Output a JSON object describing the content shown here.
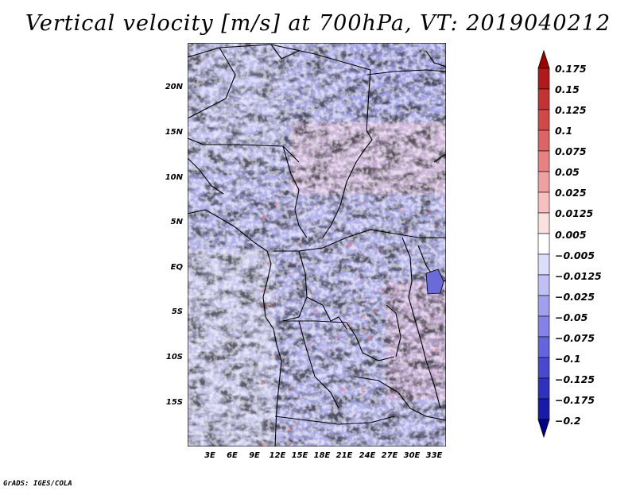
{
  "title": "Vertical velocity [m/s] at 700hPa, VT: 2019040212",
  "footer": "GrADS: IGES/COLA",
  "map": {
    "lat_labels": [
      "20N",
      "15N",
      "10N",
      "5N",
      "EQ",
      "5S",
      "10S",
      "15S"
    ],
    "lon_labels": [
      "3E",
      "6E",
      "9E",
      "12E",
      "15E",
      "18E",
      "21E",
      "24E",
      "27E",
      "30E",
      "33E"
    ],
    "lat_range": [
      -20,
      24.5
    ],
    "lon_range": [
      0,
      34.5
    ]
  },
  "colorbar": {
    "labels": [
      "0.175",
      "0.15",
      "0.125",
      "0.1",
      "0.075",
      "0.05",
      "0.025",
      "0.0125",
      "0.005",
      "−0.005",
      "−0.0125",
      "−0.025",
      "−0.05",
      "−0.075",
      "−0.1",
      "−0.125",
      "−0.175",
      "−0.2"
    ],
    "colors": [
      "#a00000",
      "#b01a1a",
      "#c43333",
      "#d04848",
      "#dc6464",
      "#e88282",
      "#f0a0a0",
      "#f6c0c0",
      "#fbe0e0",
      "#ffffff",
      "#dcdcfb",
      "#c0c0f6",
      "#a0a0ee",
      "#8282e8",
      "#6464dc",
      "#4848d0",
      "#3030c0",
      "#1a1aaa",
      "#00008c"
    ]
  }
}
